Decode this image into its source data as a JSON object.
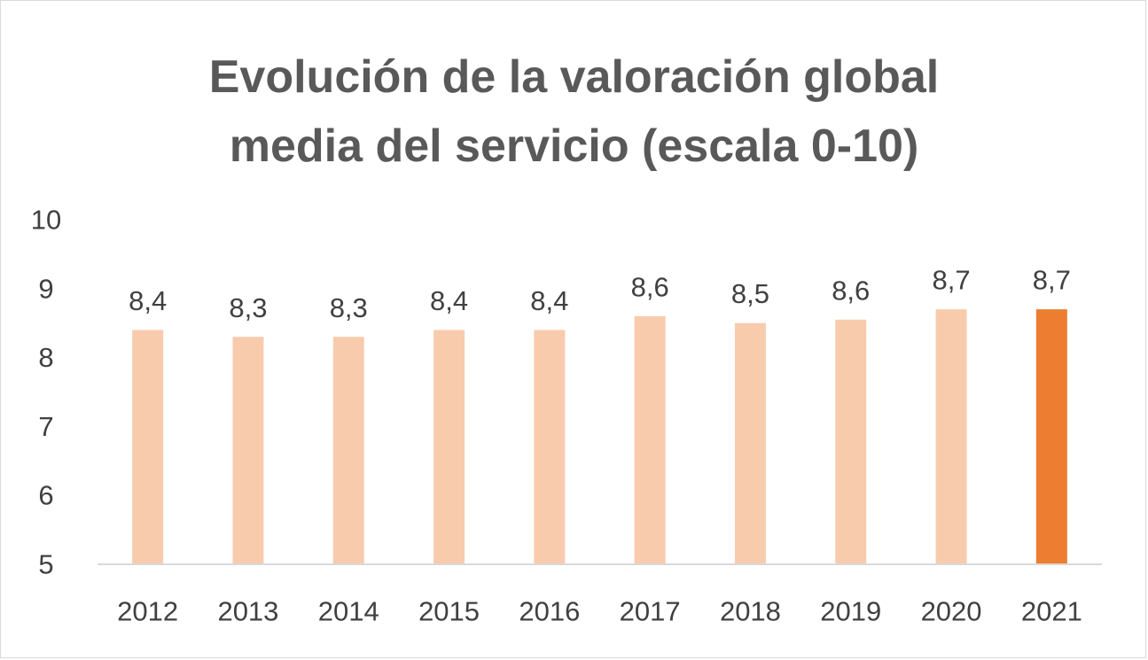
{
  "chart_data": {
    "type": "bar",
    "title_lines": [
      "Evolución de la valoración global",
      "media del servicio (escala 0-10)"
    ],
    "categories": [
      "2012",
      "2013",
      "2014",
      "2015",
      "2016",
      "2017",
      "2018",
      "2019",
      "2020",
      "2021"
    ],
    "values": [
      8.4,
      8.3,
      8.3,
      8.4,
      8.4,
      8.6,
      8.5,
      8.55,
      8.7,
      8.7
    ],
    "data_labels": [
      "8,4",
      "8,3",
      "8,3",
      "8,4",
      "8,4",
      "8,6",
      "8,5",
      "8,6",
      "8,7",
      "8,7"
    ],
    "ylim": [
      5,
      10
    ],
    "y_ticks": [
      5,
      6,
      7,
      8,
      9,
      10
    ],
    "grid": false,
    "legend": "none",
    "colors": {
      "bar": "#f8cbad",
      "highlight_bar": "#ed7d31",
      "text": "#404040",
      "title": "#595959",
      "axis": "#d9d9d9"
    },
    "highlight_index": 9
  }
}
